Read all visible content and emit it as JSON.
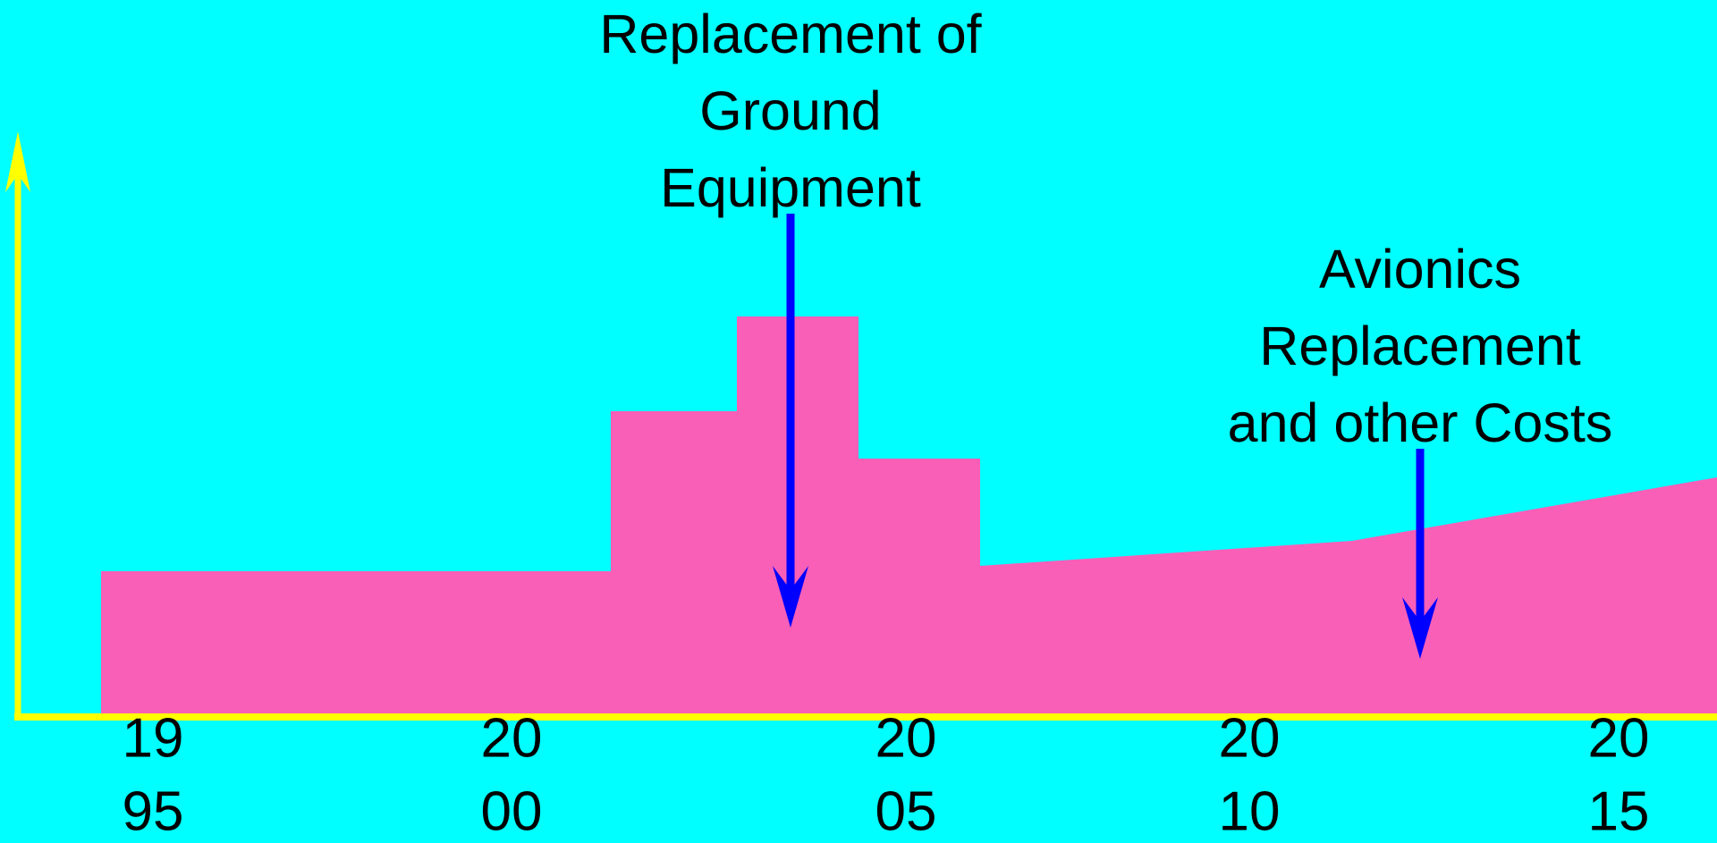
{
  "annotations": [
    {
      "lines": [
        "Replacement of",
        "Ground",
        "Equipment"
      ]
    },
    {
      "lines": [
        "Avionics",
        "Replacement",
        "and other Costs"
      ]
    }
  ],
  "years": [
    {
      "lines": [
        "19",
        "95"
      ]
    },
    {
      "lines": [
        "20",
        "00"
      ]
    },
    {
      "lines": [
        "20",
        "05"
      ]
    },
    {
      "lines": [
        "20",
        "10"
      ]
    },
    {
      "lines": [
        "20",
        "15"
      ]
    }
  ]
}
